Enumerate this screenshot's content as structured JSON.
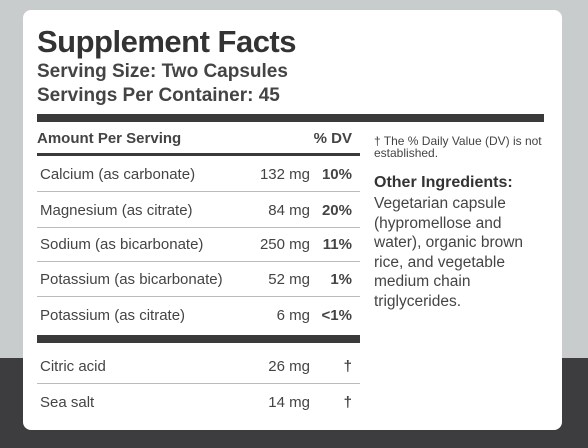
{
  "label": {
    "title": "Supplement Facts",
    "serving_size": "Serving Size: Two Capsules",
    "servings_per_container": "Servings Per Container: 45",
    "header_amount": "Amount Per Serving",
    "header_dv": "% DV",
    "nutrients": [
      {
        "name": "Calcium (as carbonate)",
        "amount": "132 mg",
        "dv": "10%"
      },
      {
        "name": "Magnesium (as citrate)",
        "amount": "84 mg",
        "dv": "20%"
      },
      {
        "name": "Sodium (as bicarbonate)",
        "amount": "250 mg",
        "dv": "11%"
      },
      {
        "name": "Potassium (as bicarbonate)",
        "amount": "52 mg",
        "dv": "1%"
      },
      {
        "name": "Potassium (as citrate)",
        "amount": "6 mg",
        "dv": "<1%"
      }
    ],
    "other": [
      {
        "name": "Citric acid",
        "amount": "26 mg",
        "dv": "†"
      },
      {
        "name": "Sea salt",
        "amount": "14 mg",
        "dv": "†"
      }
    ],
    "footnote": "† The % Daily Value (DV) is not established.",
    "other_ingredients_heading": "Other Ingredients:",
    "other_ingredients_text": "Vegetarian capsule (hypromellose and water), organic brown rice, and vegetable medium chain triglycerides."
  }
}
